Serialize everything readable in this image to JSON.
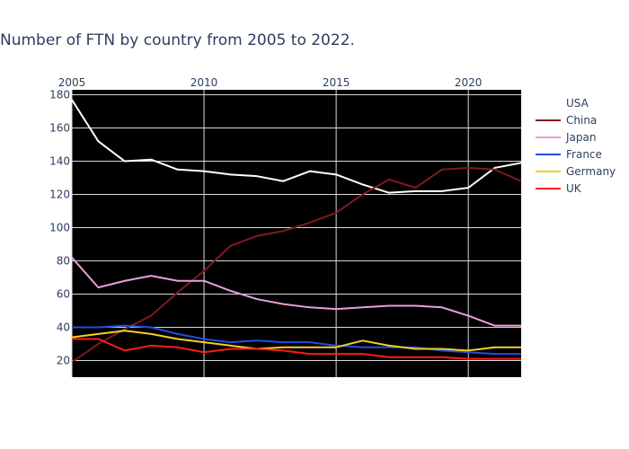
{
  "chart_data": {
    "type": "line",
    "title": "Number of FTN by country from 2005 to 2022.",
    "xlabel": "",
    "ylabel": "",
    "x": [
      2005,
      2006,
      2007,
      2008,
      2009,
      2010,
      2011,
      2012,
      2013,
      2014,
      2015,
      2016,
      2017,
      2018,
      2019,
      2020,
      2021,
      2022
    ],
    "xlim": [
      2005,
      2022
    ],
    "ylim": [
      10,
      183
    ],
    "x_ticks": [
      2005,
      2010,
      2015,
      2020
    ],
    "x_axis_side": "top",
    "y_ticks": [
      20,
      40,
      60,
      80,
      100,
      120,
      140,
      160,
      180
    ],
    "grid": true,
    "plot_background": "#000000",
    "grid_color": "#d9d9d9",
    "legend_placement": "right",
    "series": [
      {
        "name": "USA",
        "color": "#ffffff",
        "values": [
          177,
          152,
          140,
          141,
          135,
          134,
          132,
          131,
          128,
          134,
          132,
          126,
          121,
          122,
          122,
          124,
          136,
          139
        ]
      },
      {
        "name": "China",
        "color": "#7f1a1f",
        "values": [
          19,
          30,
          39,
          47,
          61,
          74,
          89,
          95,
          98,
          103,
          109,
          120,
          129,
          124,
          135,
          136,
          135,
          128
        ]
      },
      {
        "name": "Japan",
        "color": "#e8a0d8",
        "values": [
          82,
          64,
          68,
          71,
          68,
          68,
          62,
          57,
          54,
          52,
          51,
          52,
          53,
          53,
          52,
          47,
          41,
          41
        ]
      },
      {
        "name": "France",
        "color": "#1f4fe0",
        "values": [
          40,
          40,
          41,
          40,
          36,
          33,
          31,
          32,
          31,
          31,
          29,
          28,
          28,
          28,
          26,
          25,
          24,
          24
        ]
      },
      {
        "name": "Germany",
        "color": "#f2d024",
        "values": [
          34,
          36,
          38,
          36,
          33,
          31,
          29,
          27,
          28,
          28,
          28,
          32,
          29,
          27,
          27,
          26,
          28,
          28
        ]
      },
      {
        "name": "UK",
        "color": "#ff1a1a",
        "values": [
          33,
          33,
          26,
          29,
          28,
          25,
          27,
          27,
          26,
          24,
          24,
          24,
          22,
          22,
          22,
          21,
          21,
          21
        ]
      }
    ]
  }
}
